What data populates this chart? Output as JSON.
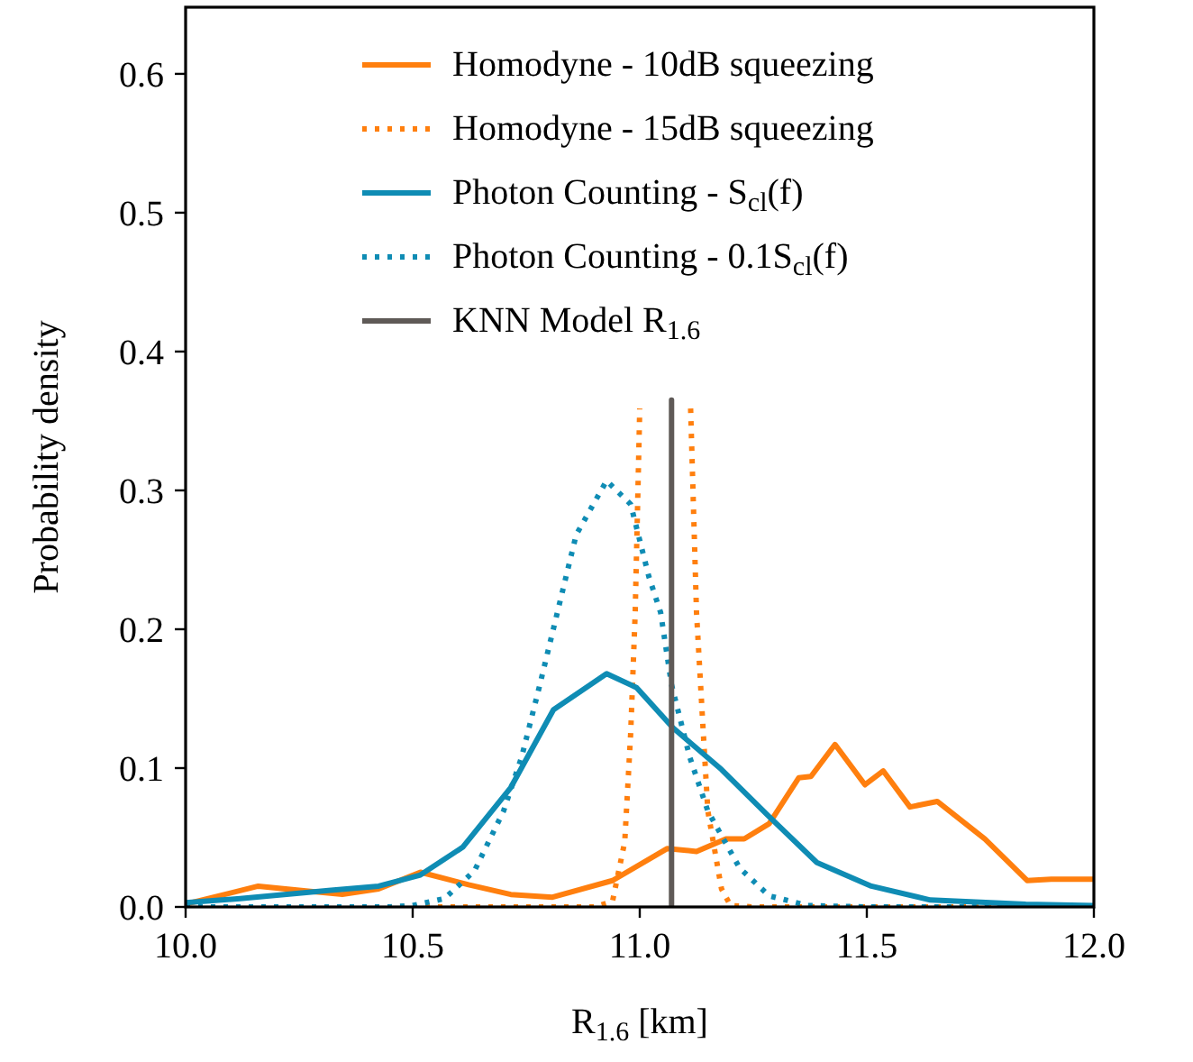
{
  "chart_data": {
    "type": "line",
    "xlabel": "R$_{1.6}$ [km]",
    "ylabel": "Probability density",
    "xlim": [
      10,
      12
    ],
    "ylim": [
      0,
      0.648
    ],
    "xticks": [
      {
        "value": 10,
        "label": "10.0"
      },
      {
        "value": 10.5,
        "label": "10.5"
      },
      {
        "value": 11,
        "label": "11.0"
      },
      {
        "value": 11.5,
        "label": "11.5"
      },
      {
        "value": 12,
        "label": "12.0"
      }
    ],
    "yticks": [
      {
        "value": 0,
        "label": "0.0"
      },
      {
        "value": 0.1,
        "label": "0.1"
      },
      {
        "value": 0.2,
        "label": "0.2"
      },
      {
        "value": 0.3,
        "label": "0.3"
      },
      {
        "value": 0.4,
        "label": "0.4"
      },
      {
        "value": 0.5,
        "label": "0.5"
      },
      {
        "value": 0.6,
        "label": "0.6"
      }
    ],
    "grid": false,
    "legend": "top right",
    "series": [
      {
        "name": "Homodyne - 10dB squeezing",
        "color": "#ff7f0e",
        "line_style": "solid",
        "x": [
          10.0,
          10.16,
          10.25,
          10.345,
          10.425,
          10.517,
          10.623,
          10.716,
          10.808,
          10.94,
          11.06,
          11.125,
          11.19,
          11.23,
          11.285,
          11.35,
          11.377,
          11.43,
          11.496,
          11.536,
          11.595,
          11.655,
          11.76,
          11.853,
          11.906,
          12.0
        ],
        "values": [
          0.002,
          0.015,
          0.012,
          0.009,
          0.013,
          0.025,
          0.016,
          0.009,
          0.007,
          0.019,
          0.042,
          0.04,
          0.049,
          0.049,
          0.06,
          0.093,
          0.094,
          0.117,
          0.088,
          0.098,
          0.072,
          0.076,
          0.049,
          0.019,
          0.02,
          0.02
        ]
      },
      {
        "name": "Homodyne - 15dB squeezing",
        "color": "#ff7f0e",
        "line_style": "dotted",
        "x": [
          10.0,
          10.5,
          10.9,
          10.94,
          10.967,
          10.98,
          10.99,
          11.0,
          11.05,
          11.112,
          11.125,
          11.14,
          11.15,
          11.18,
          11.2,
          11.25,
          12.0
        ],
        "values": [
          0,
          0,
          0,
          0.004,
          0.047,
          0.125,
          0.212,
          0.359,
          null,
          0.359,
          0.212,
          0.125,
          0.069,
          0.013,
          0.001,
          0,
          0
        ]
      },
      {
        "name": "Photon Counting - S$_{cl}$(f)",
        "color": "#0f8cb4",
        "line_style": "solid",
        "x": [
          10.0,
          10.12,
          10.32,
          10.425,
          10.517,
          10.61,
          10.716,
          10.81,
          10.927,
          10.993,
          11.073,
          11.18,
          11.285,
          11.39,
          11.51,
          11.64,
          11.85,
          12.0
        ],
        "values": [
          0.003,
          0.006,
          0.012,
          0.015,
          0.023,
          0.043,
          0.086,
          0.142,
          0.168,
          0.158,
          0.129,
          0.099,
          0.065,
          0.032,
          0.015,
          0.005,
          0.002,
          0.001
        ]
      },
      {
        "name": "Photon Counting - 0.1S$_{cl}$(f)",
        "color": "#0f8cb4",
        "line_style": "dotted",
        "x": [
          10.0,
          10.45,
          10.5,
          10.57,
          10.636,
          10.7,
          10.74,
          10.78,
          10.82,
          10.86,
          10.927,
          10.98,
          11.02,
          11.046,
          11.07,
          11.11,
          11.15,
          11.22,
          11.285,
          11.37,
          11.5,
          12.0
        ],
        "values": [
          0,
          0,
          0.001,
          0.006,
          0.026,
          0.069,
          0.108,
          0.16,
          0.214,
          0.268,
          0.307,
          0.29,
          0.238,
          0.212,
          0.16,
          0.108,
          0.069,
          0.028,
          0.008,
          0.001,
          0,
          0
        ]
      },
      {
        "name": "KNN Model R$_{1.6}$",
        "color": "#5f5a57",
        "line_style": "solid",
        "x": [
          11.07,
          11.07
        ],
        "values": [
          0,
          0.365
        ]
      }
    ]
  }
}
